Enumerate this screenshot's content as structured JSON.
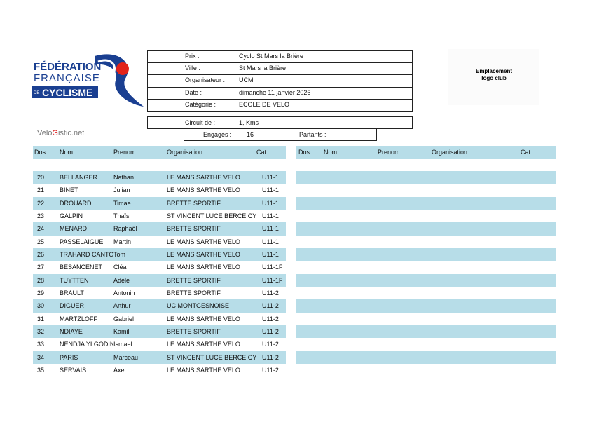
{
  "logo": {
    "line1": "FÉDÉRATION",
    "line2": "FRANÇAISE",
    "line3a": "DE",
    "line3b": "CYCLISME"
  },
  "brand": {
    "part1": "Velo",
    "part2": "G",
    "part3": "istic.net"
  },
  "club_logo": {
    "line1": "Emplacement",
    "line2": "logo club"
  },
  "info": {
    "rows": [
      {
        "label": "Prix :",
        "value": "Cyclo St Mars la Brière"
      },
      {
        "label": "Ville :",
        "value": "St Mars la Brière"
      },
      {
        "label": "Organisateur :",
        "value": "UCM"
      },
      {
        "label": "Date :",
        "value": "dimanche 11 janvier 2026"
      },
      {
        "label": "Catégorie :",
        "value": "ECOLE DE VELO"
      }
    ],
    "circuit": {
      "label": "Circuit de :",
      "value": "1, Kms"
    },
    "engages": {
      "label": "Engagés :",
      "value": 16
    },
    "partants": {
      "label": "Partants :"
    }
  },
  "table_left": {
    "headers": [
      "Dos.",
      "Nom",
      "Prenom",
      "Organisation",
      "Cat."
    ],
    "rows": [
      [
        20,
        "BELLANGER",
        "Nathan",
        "LE MANS SARTHE VELO",
        "U11-1"
      ],
      [
        21,
        "BINET",
        "Julian",
        "LE MANS SARTHE VELO",
        "U11-1"
      ],
      [
        22,
        "DROUARD",
        "Timae",
        "BRETTE SPORTIF",
        "U11-1"
      ],
      [
        23,
        "GALPIN",
        "Thaïs",
        "ST VINCENT LUCE BERCE CY",
        "U11-1"
      ],
      [
        24,
        "MENARD",
        "Raphaël",
        "BRETTE SPORTIF",
        "U11-1"
      ],
      [
        25,
        "PASSELAIGUE",
        "Martin",
        "LE MANS SARTHE VELO",
        "U11-1"
      ],
      [
        26,
        "TRAHARD CANTO",
        "Tom",
        "LE MANS SARTHE VELO",
        "U11-1"
      ],
      [
        27,
        "BESANCENET",
        "Cléa",
        "LE MANS SARTHE VELO",
        "U11-1F"
      ],
      [
        28,
        "TUYTTEN",
        "Adèle",
        "BRETTE SPORTIF",
        "U11-1F"
      ],
      [
        29,
        "BRAULT",
        "Antonin",
        "BRETTE SPORTIF",
        "U11-2"
      ],
      [
        30,
        "DIGUER",
        "Arthur",
        "UC MONTGESNOISE",
        "U11-2"
      ],
      [
        31,
        "MARTZLOFF",
        "Gabriel",
        "LE MANS SARTHE VELO",
        "U11-2"
      ],
      [
        32,
        "NDIAYE",
        "Kamil",
        "BRETTE SPORTIF",
        "U11-2"
      ],
      [
        33,
        "NENDJA YI GODIN",
        "Ismael",
        "LE MANS SARTHE VELO",
        "U11-2"
      ],
      [
        34,
        "PARIS",
        "Marceau",
        "ST VINCENT LUCE BERCE CY",
        "U11-2"
      ],
      [
        35,
        "SERVAIS",
        "Axel",
        "LE MANS SARTHE VELO",
        "U11-2"
      ]
    ]
  },
  "table_right": {
    "headers": [
      "Dos.",
      "Nom",
      "Prenom",
      "Organisation",
      "Cat."
    ]
  }
}
